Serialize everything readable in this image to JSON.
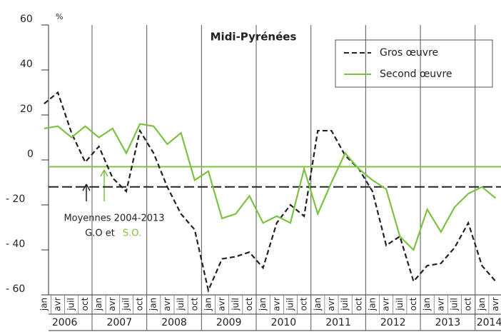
{
  "chart_data": {
    "type": "line",
    "title": "Midi-Pyrénées",
    "y_label": "%",
    "categories": [
      "jan",
      "avr",
      "juil",
      "oct",
      "jan",
      "avr",
      "juil",
      "oct",
      "jan",
      "avr",
      "juil",
      "oct",
      "jan",
      "avr",
      "juil",
      "oct",
      "jan",
      "avr",
      "juil",
      "oct",
      "jan",
      "avr",
      "juil",
      "oct",
      "jan",
      "avr",
      "juil",
      "oct",
      "jan",
      "avr",
      "juil",
      "oct",
      "jan",
      "avr"
    ],
    "years": [
      "2006",
      "2007",
      "2008",
      "2009",
      "2010",
      "2011",
      "2012",
      "2013",
      "2014"
    ],
    "series": [
      {
        "name": "Gros œuvre",
        "color": "#222222",
        "dash": true,
        "values": [
          25,
          30,
          12,
          -1,
          6,
          -8,
          -14,
          13,
          3,
          -12,
          -24,
          -31,
          -58,
          -44,
          -43,
          -41,
          -48,
          -28,
          -20,
          -25,
          13,
          13,
          2,
          -4,
          -14,
          -38,
          -34,
          -54,
          -47,
          -46,
          -39,
          -28,
          -47,
          -54
        ]
      },
      {
        "name": "Second œuvre",
        "color": "#7dc142",
        "dash": false,
        "values": [
          14,
          15,
          10,
          15,
          10,
          14,
          3,
          16,
          15,
          7,
          12,
          -9,
          -5,
          -26,
          -24,
          -16,
          -28,
          -25,
          -28,
          -4,
          -24,
          -10,
          3,
          -4,
          -9,
          -13,
          -34,
          -40,
          -22,
          -32,
          -21,
          -15,
          -12,
          -17
        ]
      }
    ],
    "averages": [
      {
        "value": -12,
        "color": "#222222"
      },
      {
        "value": -3,
        "color": "#7dc142"
      }
    ],
    "annotation": {
      "line1": "Moyennes 2004-2013",
      "line2": "G.O et",
      "line3": "S.O."
    },
    "ylim": [
      -60,
      60
    ],
    "yticks": [
      60,
      40,
      20,
      0,
      {
        "value": -20,
        "label": "- 20"
      },
      {
        "value": -40,
        "label": "- 40"
      },
      {
        "value": -60,
        "label": "- 60"
      }
    ],
    "legend": "top-right"
  }
}
